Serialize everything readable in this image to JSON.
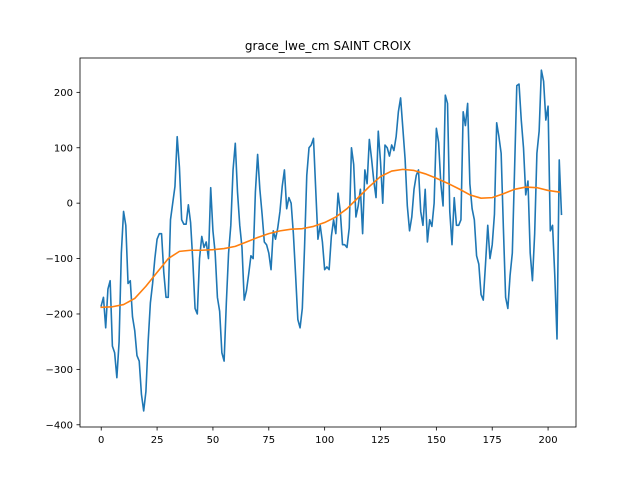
{
  "chart_data": {
    "type": "line",
    "title": "grace_lwe_cm SAINT CROIX",
    "xlabel": "",
    "ylabel": "",
    "xlim": [
      -9.5,
      212.5
    ],
    "ylim": [
      -404,
      262
    ],
    "x_ticks": [
      0,
      25,
      50,
      75,
      100,
      125,
      150,
      175,
      200
    ],
    "y_ticks": [
      -400,
      -300,
      -200,
      -100,
      0,
      100,
      200
    ],
    "grid": false,
    "legend": "none",
    "series": [
      {
        "color": "#1f77b4",
        "points": [
          [
            0,
            -185
          ],
          [
            1,
            -170
          ],
          [
            2,
            -225
          ],
          [
            3,
            -155
          ],
          [
            4,
            -140
          ],
          [
            5,
            -258
          ],
          [
            6,
            -270
          ],
          [
            7,
            -315
          ],
          [
            8,
            -250
          ],
          [
            9,
            -90
          ],
          [
            10,
            -15
          ],
          [
            11,
            -40
          ],
          [
            12,
            -145
          ],
          [
            13,
            -140
          ],
          [
            14,
            -205
          ],
          [
            15,
            -230
          ],
          [
            16,
            -275
          ],
          [
            17,
            -285
          ],
          [
            18,
            -345
          ],
          [
            19,
            -375
          ],
          [
            20,
            -340
          ],
          [
            21,
            -250
          ],
          [
            22,
            -180
          ],
          [
            23,
            -145
          ],
          [
            24,
            -100
          ],
          [
            25,
            -65
          ],
          [
            26,
            -55
          ],
          [
            27,
            -55
          ],
          [
            28,
            -125
          ],
          [
            29,
            -170
          ],
          [
            30,
            -170
          ],
          [
            31,
            -30
          ],
          [
            32,
            0
          ],
          [
            33,
            30
          ],
          [
            34,
            120
          ],
          [
            35,
            65
          ],
          [
            36,
            -30
          ],
          [
            37,
            -38
          ],
          [
            38,
            -38
          ],
          [
            39,
            -3
          ],
          [
            40,
            -35
          ],
          [
            41,
            -105
          ],
          [
            42,
            -190
          ],
          [
            43,
            -200
          ],
          [
            44,
            -100
          ],
          [
            45,
            -60
          ],
          [
            46,
            -80
          ],
          [
            47,
            -70
          ],
          [
            48,
            -100
          ],
          [
            49,
            28
          ],
          [
            50,
            -50
          ],
          [
            51,
            -90
          ],
          [
            52,
            -170
          ],
          [
            53,
            -195
          ],
          [
            54,
            -270
          ],
          [
            55,
            -285
          ],
          [
            56,
            -180
          ],
          [
            57,
            -90
          ],
          [
            58,
            -40
          ],
          [
            59,
            60
          ],
          [
            60,
            108
          ],
          [
            61,
            20
          ],
          [
            62,
            -40
          ],
          [
            63,
            -80
          ],
          [
            64,
            -175
          ],
          [
            65,
            -158
          ],
          [
            66,
            -128
          ],
          [
            67,
            -95
          ],
          [
            68,
            -100
          ],
          [
            69,
            20
          ],
          [
            70,
            88
          ],
          [
            71,
            25
          ],
          [
            72,
            -20
          ],
          [
            73,
            -70
          ],
          [
            74,
            -75
          ],
          [
            75,
            -90
          ],
          [
            76,
            -120
          ],
          [
            77,
            -50
          ],
          [
            78,
            -65
          ],
          [
            79,
            -45
          ],
          [
            80,
            -15
          ],
          [
            81,
            30
          ],
          [
            82,
            60
          ],
          [
            83,
            -10
          ],
          [
            84,
            10
          ],
          [
            85,
            0
          ],
          [
            86,
            -55
          ],
          [
            87,
            -130
          ],
          [
            88,
            -210
          ],
          [
            89,
            -225
          ],
          [
            90,
            -190
          ],
          [
            91,
            -80
          ],
          [
            92,
            50
          ],
          [
            93,
            100
          ],
          [
            94,
            105
          ],
          [
            95,
            117
          ],
          [
            96,
            25
          ],
          [
            97,
            -65
          ],
          [
            98,
            -40
          ],
          [
            99,
            -70
          ],
          [
            100,
            -120
          ],
          [
            101,
            -115
          ],
          [
            102,
            -120
          ],
          [
            103,
            -60
          ],
          [
            104,
            -30
          ],
          [
            105,
            -55
          ],
          [
            106,
            18
          ],
          [
            107,
            -15
          ],
          [
            108,
            -75
          ],
          [
            109,
            -75
          ],
          [
            110,
            -80
          ],
          [
            111,
            -45
          ],
          [
            112,
            100
          ],
          [
            113,
            70
          ],
          [
            114,
            -25
          ],
          [
            115,
            -5
          ],
          [
            116,
            25
          ],
          [
            117,
            -55
          ],
          [
            118,
            60
          ],
          [
            119,
            35
          ],
          [
            120,
            115
          ],
          [
            121,
            80
          ],
          [
            122,
            40
          ],
          [
            123,
            10
          ],
          [
            124,
            130
          ],
          [
            125,
            75
          ],
          [
            126,
            0
          ],
          [
            127,
            105
          ],
          [
            128,
            100
          ],
          [
            129,
            85
          ],
          [
            130,
            105
          ],
          [
            131,
            95
          ],
          [
            132,
            120
          ],
          [
            133,
            165
          ],
          [
            134,
            190
          ],
          [
            135,
            135
          ],
          [
            136,
            80
          ],
          [
            137,
            -5
          ],
          [
            138,
            -50
          ],
          [
            139,
            -25
          ],
          [
            140,
            25
          ],
          [
            141,
            50
          ],
          [
            142,
            60
          ],
          [
            143,
            -15
          ],
          [
            144,
            -40
          ],
          [
            145,
            25
          ],
          [
            146,
            -70
          ],
          [
            147,
            -30
          ],
          [
            148,
            -42
          ],
          [
            149,
            0
          ],
          [
            150,
            135
          ],
          [
            151,
            110
          ],
          [
            152,
            35
          ],
          [
            153,
            -5
          ],
          [
            154,
            195
          ],
          [
            155,
            180
          ],
          [
            156,
            -15
          ],
          [
            157,
            -75
          ],
          [
            158,
            10
          ],
          [
            159,
            -40
          ],
          [
            160,
            -40
          ],
          [
            161,
            -30
          ],
          [
            162,
            165
          ],
          [
            163,
            140
          ],
          [
            164,
            180
          ],
          [
            165,
            35
          ],
          [
            166,
            -10
          ],
          [
            167,
            -30
          ],
          [
            168,
            -95
          ],
          [
            169,
            -110
          ],
          [
            170,
            -165
          ],
          [
            171,
            -175
          ],
          [
            172,
            -110
          ],
          [
            173,
            -40
          ],
          [
            174,
            -100
          ],
          [
            175,
            -75
          ],
          [
            176,
            -20
          ],
          [
            177,
            145
          ],
          [
            178,
            120
          ],
          [
            179,
            90
          ],
          [
            180,
            -45
          ],
          [
            181,
            -170
          ],
          [
            182,
            -190
          ],
          [
            183,
            -130
          ],
          [
            184,
            -90
          ],
          [
            185,
            60
          ],
          [
            186,
            212
          ],
          [
            187,
            215
          ],
          [
            188,
            150
          ],
          [
            189,
            100
          ],
          [
            190,
            15
          ],
          [
            191,
            40
          ],
          [
            192,
            -90
          ],
          [
            193,
            -140
          ],
          [
            194,
            -55
          ],
          [
            195,
            90
          ],
          [
            196,
            130
          ],
          [
            197,
            240
          ],
          [
            198,
            220
          ],
          [
            199,
            150
          ],
          [
            200,
            175
          ],
          [
            201,
            -50
          ],
          [
            202,
            -40
          ],
          [
            203,
            -130
          ],
          [
            204,
            -245
          ],
          [
            205,
            78
          ],
          [
            206,
            -20
          ]
        ]
      },
      {
        "color": "#ff7f0e",
        "points": [
          [
            0,
            -188
          ],
          [
            5,
            -187
          ],
          [
            10,
            -183
          ],
          [
            15,
            -172
          ],
          [
            20,
            -150
          ],
          [
            25,
            -125
          ],
          [
            30,
            -100
          ],
          [
            35,
            -87
          ],
          [
            40,
            -85
          ],
          [
            45,
            -85
          ],
          [
            50,
            -84
          ],
          [
            55,
            -82
          ],
          [
            60,
            -78
          ],
          [
            65,
            -70
          ],
          [
            70,
            -62
          ],
          [
            75,
            -55
          ],
          [
            80,
            -50
          ],
          [
            85,
            -47
          ],
          [
            90,
            -46
          ],
          [
            95,
            -42
          ],
          [
            100,
            -35
          ],
          [
            105,
            -25
          ],
          [
            110,
            -10
          ],
          [
            115,
            10
          ],
          [
            120,
            30
          ],
          [
            125,
            48
          ],
          [
            130,
            58
          ],
          [
            135,
            61
          ],
          [
            140,
            59
          ],
          [
            145,
            53
          ],
          [
            150,
            45
          ],
          [
            155,
            36
          ],
          [
            160,
            26
          ],
          [
            165,
            15
          ],
          [
            170,
            9
          ],
          [
            175,
            10
          ],
          [
            180,
            17
          ],
          [
            185,
            25
          ],
          [
            190,
            29
          ],
          [
            195,
            28
          ],
          [
            200,
            23
          ],
          [
            205,
            20
          ]
        ]
      }
    ]
  }
}
